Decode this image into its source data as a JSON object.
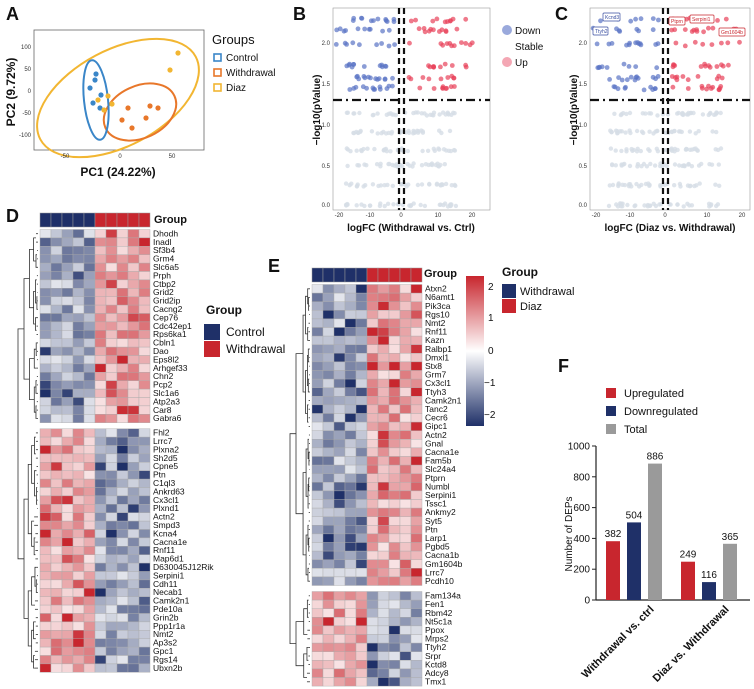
{
  "panels": {
    "a": "A",
    "b": "B",
    "c": "C",
    "d": "D",
    "e": "E",
    "f": "F"
  },
  "pca": {
    "xlabel": "PC1 (24.22%)",
    "ylabel": "PC2 (9.72%)",
    "xticks": [
      "-50",
      "0",
      "50"
    ],
    "yticks": [
      "100",
      "50",
      "0",
      "-50",
      "-100"
    ],
    "legend_title": "Groups",
    "groups": [
      {
        "name": "Control",
        "color": "#3a86c8"
      },
      {
        "name": "Withdrawal",
        "color": "#e8772a"
      },
      {
        "name": "Diaz",
        "color": "#f2b632"
      }
    ]
  },
  "volcano_b": {
    "xlabel": "logFC (Withdrawal vs. Ctrl)",
    "ylabel": "−log10(pValue)",
    "xticks": [
      "-20",
      "-10",
      "0",
      "10",
      "20"
    ],
    "yticks": [
      "2.0",
      "1.5",
      "1.0",
      "0.5",
      "0.0"
    ],
    "legend": [
      {
        "name": "Down",
        "color": "#9aa9dc"
      },
      {
        "name": "Stable",
        "color": "#ffffff"
      },
      {
        "name": "Up",
        "color": "#f4a7b4"
      }
    ]
  },
  "volcano_c": {
    "xlabel": "logFC (Diaz vs. Withdrawal)",
    "ylabel": "−log10(pValue)",
    "xticks": [
      "-20",
      "-10",
      "0",
      "10",
      "20"
    ],
    "yticks": [
      "2.0",
      "1.5",
      "1.0",
      "0.5",
      "0.0"
    ],
    "labels_down": [
      "Kcnd3",
      "Ttyh2"
    ],
    "labels_up": [
      "Ptprn",
      "Serpini1",
      "Gm1604b"
    ]
  },
  "heatmap_d": {
    "group_header": "Group",
    "legend_title": "Group",
    "legend": [
      {
        "name": "Control",
        "color": "#1f3068"
      },
      {
        "name": "Withdrawal",
        "color": "#c8262e"
      }
    ],
    "genes_up": [
      "Dhodh",
      "Inadl",
      "Sf3b4",
      "Grm4",
      "Slc6a5",
      "Prph",
      "Ctbp2",
      "Grid2",
      "Grid2ip",
      "Cacng2",
      "Cep76",
      "Cdc42ep1",
      "Rps6ka1",
      "Cbln1",
      "Dao",
      "Eps8l2",
      "Arhgef33",
      "Chn2",
      "Pcp2",
      "Slc1a6",
      "Atp2a3",
      "Car8",
      "Gabra6"
    ],
    "genes_down": [
      "Fhl2",
      "Lrrc7",
      "Plxna2",
      "Sh2d5",
      "Cpne5",
      "Ptn",
      "C1ql3",
      "Ankrd63",
      "Cx3cl1",
      "Plxnd1",
      "Actn2",
      "Smpd3",
      "Kcna4",
      "Cacna1e",
      "Rnf11",
      "Map6d1",
      "D630045J12Rik",
      "Serpini1",
      "Cdh11",
      "Necab1",
      "Camk2n1",
      "Pde10a",
      "Grin2b",
      "Ppp1r1a",
      "Nmt2",
      "Ap3s2",
      "Gpc1",
      "Rgs14",
      "Ubxn2b"
    ]
  },
  "heatmap_e": {
    "group_header": "Group",
    "legend_title": "Group",
    "legend": [
      {
        "name": "Withdrawal",
        "color": "#1f3068"
      },
      {
        "name": "Diaz",
        "color": "#c8262e"
      }
    ],
    "scale_ticks": [
      "2",
      "1",
      "0",
      "−1",
      "−2"
    ],
    "genes_up": [
      "Atxn2",
      "N6amt1",
      "Pik3ca",
      "Rgs10",
      "Nmt2",
      "Rnf11",
      "Kazn",
      "Ralbp1",
      "Dmxl1",
      "Stx8",
      "Grm7",
      "Cx3cl1",
      "Ttyh3",
      "Camk2n1",
      "Tanc2",
      "Cecr6",
      "Gipc1",
      "Actn2",
      "Gnal",
      "Cacna1e",
      "Fam5b",
      "Slc24a4",
      "Ptprn",
      "Numbl",
      "Serpini1",
      "Tssc1",
      "Ankmy2",
      "Syt5",
      "Ptn",
      "Larp1",
      "Pgbd5",
      "Cacna1b",
      "Gm1604b",
      "Lrrc7",
      "Pcdh10"
    ],
    "genes_down": [
      "Fam134a",
      "Fen1",
      "Rbm42",
      "Nt5c1a",
      "Ppox",
      "Mrps2",
      "Ttyh2",
      "Srpr",
      "Kctd8",
      "Adcy8",
      "Tmx1"
    ]
  },
  "chart_data": {
    "type": "bar",
    "title": "",
    "ylabel": "Number of DEPs",
    "xlabel": "",
    "ylim": [
      0,
      1000
    ],
    "yticks": [
      "0",
      "200",
      "400",
      "600",
      "800",
      "1000"
    ],
    "categories": [
      "Withdrawal vs. ctrl",
      "Diaz vs. Withdrawal"
    ],
    "series": [
      {
        "name": "Upregulated",
        "color": "#c8262e",
        "values": [
          382,
          249
        ]
      },
      {
        "name": "Downregulated",
        "color": "#1f3068",
        "values": [
          504,
          116
        ]
      },
      {
        "name": "Total",
        "color": "#9a9a9a",
        "values": [
          886,
          365
        ]
      }
    ],
    "legend_position": "top"
  }
}
